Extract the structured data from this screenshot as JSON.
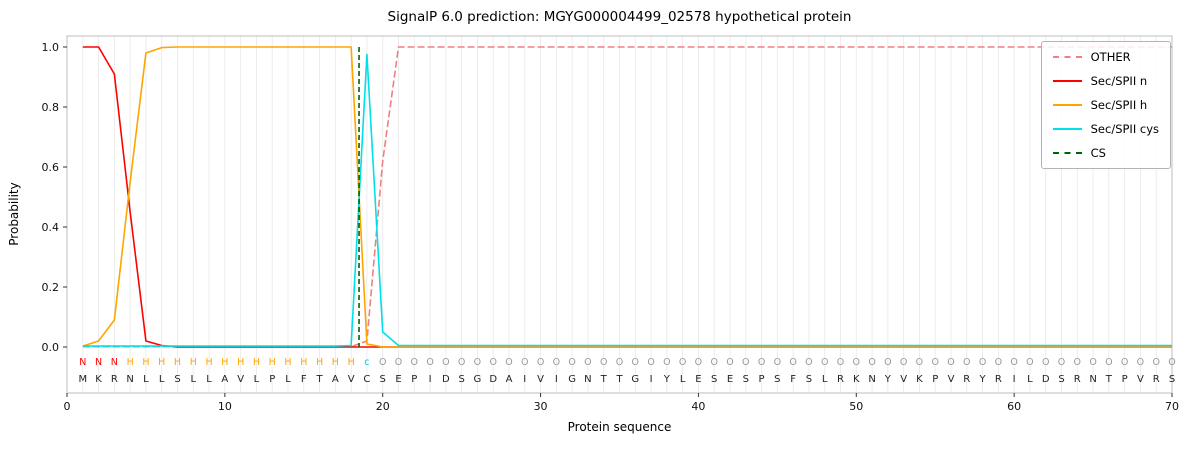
{
  "chart_data": {
    "type": "line",
    "title": "SignalP 6.0 prediction: MGYG000004499_02578 hypothetical protein",
    "xlabel": "Protein sequence",
    "ylabel": "Probability",
    "xlim": [
      0,
      70
    ],
    "ylim": [
      -0.15,
      1.04
    ],
    "x_ticks": [
      0,
      10,
      20,
      30,
      40,
      50,
      60,
      70
    ],
    "y_ticks": [
      0.0,
      0.2,
      0.4,
      0.6,
      0.8,
      1.0
    ],
    "grid": "vertical-per-residue",
    "grid_color": "#e8e8e8",
    "frame_color": "#bdbdbd",
    "legend_position": "top-right",
    "sequence": "MKRNLLSLLAVLPLFTAVCSEPIDSGDAIVIGNTTGIYLESESPSFSLRKNYVKPVRYRILDSRNTPVRS",
    "residue_labels": "NNNHHHHHHHHHHHHHHHcOOOOOOOOOOOOOOOOOOOOOOOOOOOOOOOOOOOOOOOOOOOOOOOOOOO",
    "label_colors": {
      "N": "#ff0000",
      "H": "#ffa500",
      "c": "#00c8d8",
      "O": "#979797"
    },
    "sequence_color": "#222222",
    "series": [
      {
        "id": "other",
        "name": "OTHER",
        "color": "#f08080",
        "dashed": true,
        "values": [
          0.001,
          0.001,
          0.001,
          0.001,
          0.001,
          0.001,
          0.001,
          0.001,
          0.001,
          0.001,
          0.001,
          0.001,
          0.001,
          0.001,
          0.001,
          0.001,
          0.001,
          0.001,
          0.02,
          0.62,
          1.0,
          1.0,
          1.0,
          1.0,
          1.0,
          1.0,
          1.0,
          1.0,
          1.0,
          1.0,
          1.0,
          1.0,
          1.0,
          1.0,
          1.0,
          1.0,
          1.0,
          1.0,
          1.0,
          1.0,
          1.0,
          1.0,
          1.0,
          1.0,
          1.0,
          1.0,
          1.0,
          1.0,
          1.0,
          1.0,
          1.0,
          1.0,
          1.0,
          1.0,
          1.0,
          1.0,
          1.0,
          1.0,
          1.0,
          1.0,
          1.0,
          1.0,
          1.0,
          1.0,
          1.0,
          1.0,
          1.0,
          1.0,
          1.0,
          1.0
        ]
      },
      {
        "id": "sec-spii-n",
        "name": "Sec/SPII n",
        "color": "#ff0000",
        "dashed": false,
        "values": [
          1.0,
          1.0,
          0.91,
          0.45,
          0.02,
          0.005,
          0,
          0,
          0,
          0,
          0,
          0,
          0,
          0,
          0,
          0,
          0,
          0,
          0,
          0,
          0,
          0,
          0,
          0,
          0,
          0,
          0,
          0,
          0,
          0,
          0,
          0,
          0,
          0,
          0,
          0,
          0,
          0,
          0,
          0,
          0,
          0,
          0,
          0,
          0,
          0,
          0,
          0,
          0,
          0,
          0,
          0,
          0,
          0,
          0,
          0,
          0,
          0,
          0,
          0,
          0,
          0,
          0,
          0,
          0,
          0,
          0,
          0,
          0,
          0
        ]
      },
      {
        "id": "sec-spii-h",
        "name": "Sec/SPII h",
        "color": "#ffa500",
        "dashed": false,
        "values": [
          0.003,
          0.02,
          0.09,
          0.55,
          0.98,
          0.998,
          1.0,
          1.0,
          1.0,
          1.0,
          1.0,
          1.0,
          1.0,
          1.0,
          1.0,
          1.0,
          1.0,
          1.0,
          0.01,
          0,
          0,
          0,
          0,
          0,
          0,
          0,
          0,
          0,
          0,
          0,
          0,
          0,
          0,
          0,
          0,
          0,
          0,
          0,
          0,
          0,
          0,
          0,
          0,
          0,
          0,
          0,
          0,
          0,
          0,
          0,
          0,
          0,
          0,
          0,
          0,
          0,
          0,
          0,
          0,
          0,
          0,
          0,
          0,
          0,
          0,
          0,
          0,
          0,
          0,
          0
        ]
      },
      {
        "id": "sec-spii-cys",
        "name": "Sec/SPII cys",
        "color": "#00e0e8",
        "dashed": false,
        "values": [
          0.003,
          0.003,
          0.003,
          0.003,
          0.003,
          0.003,
          0.003,
          0.003,
          0.003,
          0.003,
          0.003,
          0.003,
          0.003,
          0.003,
          0.003,
          0.003,
          0.003,
          0.005,
          0.975,
          0.05,
          0.005,
          0.005,
          0.005,
          0.005,
          0.005,
          0.005,
          0.005,
          0.005,
          0.005,
          0.005,
          0.005,
          0.005,
          0.005,
          0.005,
          0.005,
          0.005,
          0.005,
          0.005,
          0.005,
          0.005,
          0.005,
          0.005,
          0.005,
          0.005,
          0.005,
          0.005,
          0.005,
          0.005,
          0.005,
          0.005,
          0.005,
          0.005,
          0.005,
          0.005,
          0.005,
          0.005,
          0.005,
          0.005,
          0.005,
          0.005,
          0.005,
          0.005,
          0.005,
          0.005,
          0.005,
          0.005,
          0.005,
          0.005,
          0.005,
          0.005
        ]
      }
    ],
    "cs_marker": {
      "name": "CS",
      "x": 18.5,
      "color": "#006400",
      "dashed": true
    },
    "legend": [
      {
        "label": "OTHER",
        "color": "#f08080",
        "dashed": true
      },
      {
        "label": "Sec/SPII n",
        "color": "#ff0000",
        "dashed": false
      },
      {
        "label": "Sec/SPII h",
        "color": "#ffa500",
        "dashed": false
      },
      {
        "label": "Sec/SPII cys",
        "color": "#00e0e8",
        "dashed": false
      },
      {
        "label": "CS",
        "color": "#006400",
        "dashed": true
      }
    ]
  }
}
